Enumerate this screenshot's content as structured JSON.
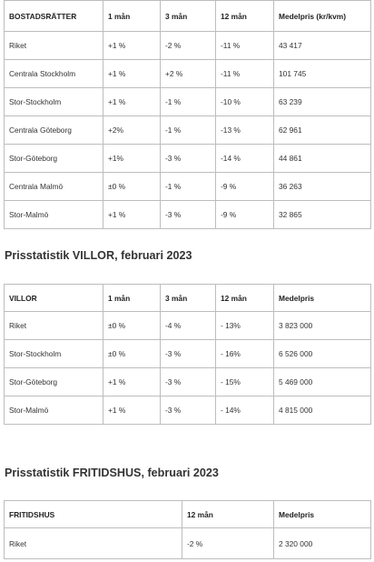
{
  "bostadsratter": {
    "headers": [
      "BOSTADSRÄTTER",
      "1 mån",
      "3 mån",
      "12 mån",
      "Medelpris (kr/kvm)"
    ],
    "rows": [
      [
        "Riket",
        "+1 %",
        "-2 %",
        "-11 %",
        "43 417"
      ],
      [
        "Centrala Stockholm",
        "+1 %",
        "+2 %",
        "-11 %",
        "101 745"
      ],
      [
        "Stor-Stockholm",
        "+1 %",
        "-1 %",
        "-10 %",
        "63 239"
      ],
      [
        "Centrala Göteborg",
        "+2%",
        "-1 %",
        "-13 %",
        "62 961"
      ],
      [
        "Stor-Göteborg",
        "+1%",
        "-3 %",
        "-14 %",
        "44 861"
      ],
      [
        "Centrala Malmö",
        "±0 %",
        "-1 %",
        "-9 %",
        "36 263"
      ],
      [
        "Stor-Malmö",
        "+1 %",
        "-3 %",
        "-9 %",
        "32 865"
      ]
    ]
  },
  "villor": {
    "heading": "Prisstatistik VILLOR, februari 2023",
    "headers": [
      "VILLOR",
      "1 mån",
      "3 mån",
      "12 mån",
      "Medelpris"
    ],
    "rows": [
      [
        "Riket",
        "±0 %",
        "-4 %",
        "- 13%",
        "3 823 000"
      ],
      [
        "Stor-Stockholm",
        "±0 %",
        "-3 %",
        "- 16%",
        "6 526 000"
      ],
      [
        "Stor-Göteborg",
        "+1 %",
        "-3 %",
        "- 15%",
        "5 469 000"
      ],
      [
        "Stor-Malmö",
        "+1 %",
        "-3 %",
        "- 14%",
        "4 815 000"
      ]
    ]
  },
  "fritidshus": {
    "heading": "Prisstatistik FRITIDSHUS, februari 2023",
    "headers": [
      "FRITIDSHUS",
      "12 mån",
      "Medelpris"
    ],
    "rows": [
      [
        "Riket",
        "-2 %",
        "2 320 000"
      ]
    ]
  }
}
